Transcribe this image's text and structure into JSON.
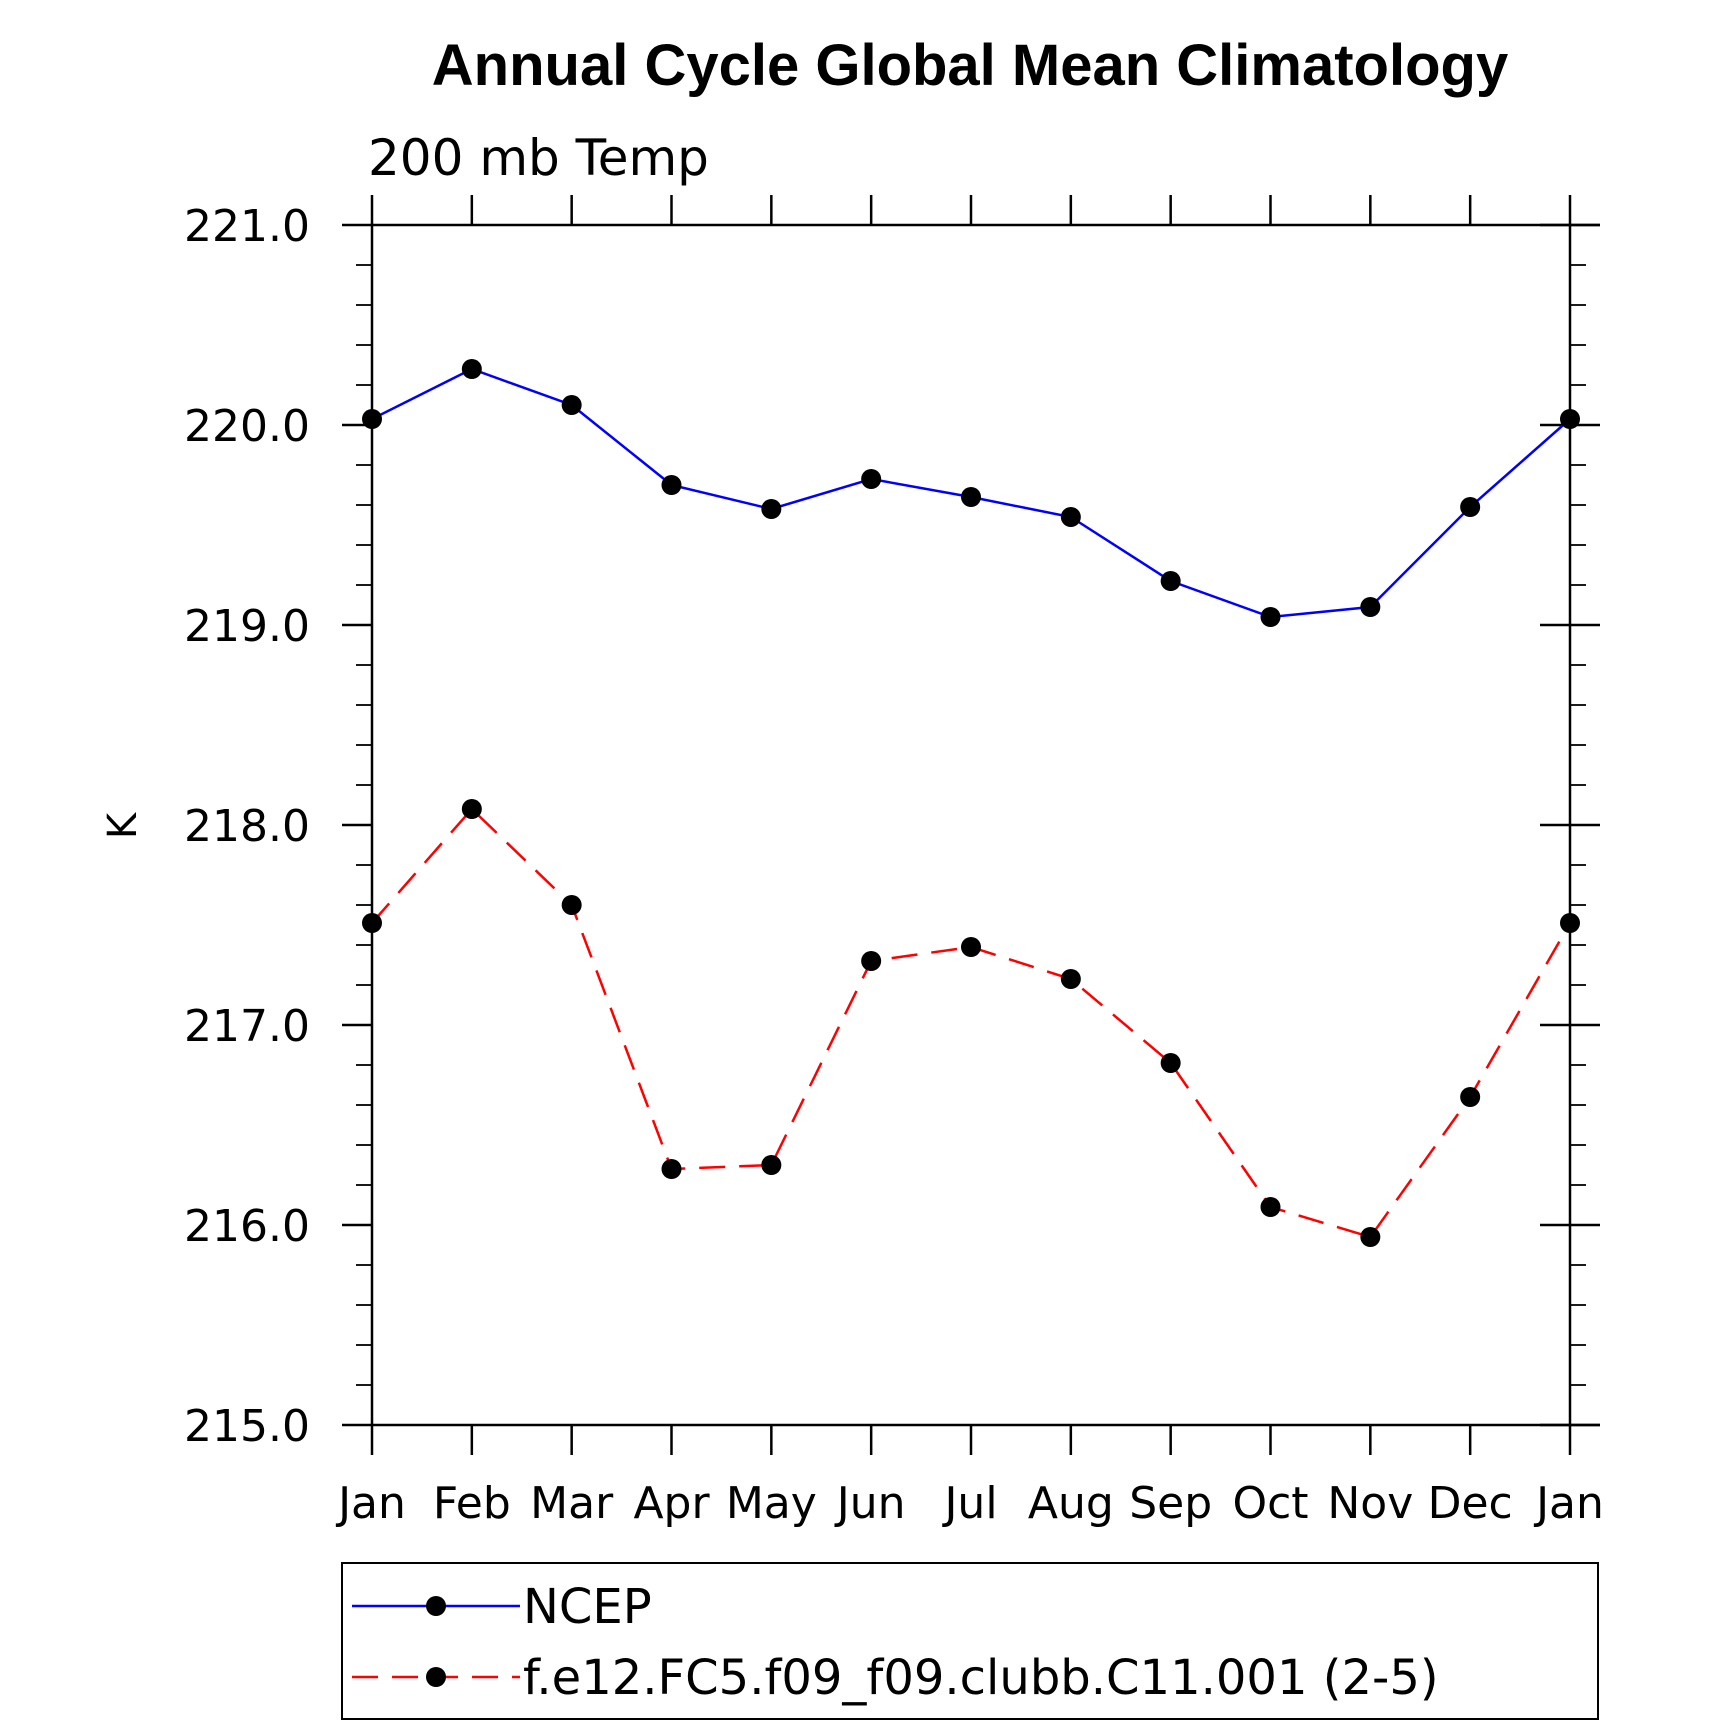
{
  "chart_data": {
    "type": "line",
    "title": "Annual Cycle Global Mean Climatology",
    "subtitle": "200 mb Temp",
    "xlabel": "",
    "ylabel": "K",
    "categories": [
      "Jan",
      "Feb",
      "Mar",
      "Apr",
      "May",
      "Jun",
      "Jul",
      "Aug",
      "Sep",
      "Oct",
      "Nov",
      "Dec",
      "Jan"
    ],
    "ylim": [
      215.0,
      221.0
    ],
    "yticks": [
      "215.0",
      "216.0",
      "217.0",
      "218.0",
      "219.0",
      "220.0",
      "221.0"
    ],
    "grid": false,
    "legend_position": "bottom",
    "series": [
      {
        "name": "NCEP",
        "color": "#0000ff",
        "dash": "solid",
        "marker": "filled-circle",
        "values": [
          220.03,
          220.28,
          220.1,
          219.7,
          219.58,
          219.73,
          219.64,
          219.54,
          219.22,
          219.04,
          219.09,
          219.59,
          220.03
        ]
      },
      {
        "name": "f.e12.FC5.f09_f09.clubb.C11.001 (2-5)",
        "color": "#ff0000",
        "dash": "dashed",
        "marker": "filled-circle",
        "values": [
          217.51,
          218.08,
          217.6,
          216.28,
          216.3,
          217.32,
          217.39,
          217.23,
          216.81,
          216.09,
          215.94,
          216.64,
          217.51
        ]
      }
    ]
  }
}
